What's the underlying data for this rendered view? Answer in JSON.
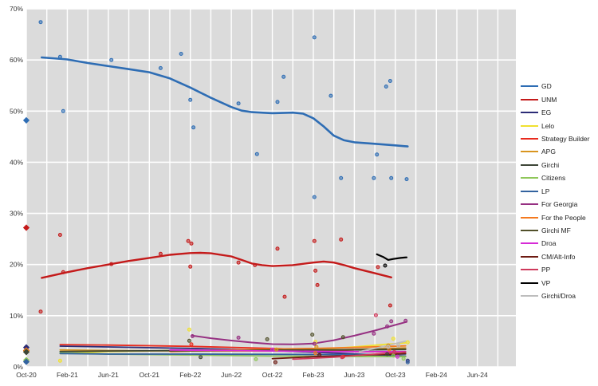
{
  "chart_data": {
    "type": "scatter",
    "description": "Opinion polling scatter with trend lines; x = months since Oct-2020, y = percent",
    "x_axis": {
      "tick_labels": [
        "Oct-20",
        "Feb-21",
        "Jun-21",
        "Oct-21",
        "Feb-22",
        "Jun-22",
        "Oct-22",
        "Feb-23",
        "Jun-23",
        "Oct-23",
        "Feb-24",
        "Jun-24"
      ],
      "tick_month_step": 4,
      "minor_grid_month_step": 2,
      "months_span": 46
    },
    "y_axis": {
      "tick_labels": [
        "0%",
        "10%",
        "20%",
        "30%",
        "40%",
        "50%",
        "60%",
        "70%"
      ],
      "min": 0,
      "max": 70
    },
    "plot_background": "#dbdbdb",
    "gridline_color": "#ffffff",
    "series": [
      {
        "name": "GD",
        "color": "#2e6db4",
        "line_width": 2.6,
        "result": 48.2,
        "trend": [
          [
            1.5,
            60.5
          ],
          [
            4,
            60.1
          ],
          [
            6,
            59.4
          ],
          [
            8,
            58.8
          ],
          [
            10,
            58.2
          ],
          [
            12,
            57.6
          ],
          [
            14,
            56.4
          ],
          [
            16,
            54.6
          ],
          [
            18,
            52.6
          ],
          [
            20,
            50.8
          ],
          [
            21,
            50.1
          ],
          [
            22,
            49.8
          ],
          [
            24,
            49.6
          ],
          [
            26,
            49.7
          ],
          [
            27,
            49.5
          ],
          [
            28,
            48.6
          ],
          [
            29,
            47.0
          ],
          [
            30,
            45.2
          ],
          [
            31,
            44.3
          ],
          [
            32,
            43.9
          ],
          [
            34,
            43.6
          ],
          [
            36,
            43.3
          ],
          [
            37.2,
            43.1
          ]
        ],
        "points": [
          [
            1.4,
            67.4
          ],
          [
            3.3,
            60.6
          ],
          [
            3.6,
            50.0
          ],
          [
            8.3,
            60.0
          ],
          [
            13.1,
            58.4
          ],
          [
            15.1,
            61.2
          ],
          [
            16.0,
            52.2
          ],
          [
            16.3,
            46.8
          ],
          [
            20.7,
            51.5
          ],
          [
            22.5,
            41.6
          ],
          [
            24.5,
            51.8
          ],
          [
            25.1,
            56.7
          ],
          [
            28.1,
            64.4
          ],
          [
            28.1,
            33.2
          ],
          [
            29.7,
            53.0
          ],
          [
            30.7,
            36.9
          ],
          [
            34.2,
            41.5
          ],
          [
            33.9,
            36.9
          ],
          [
            35.1,
            54.8
          ],
          [
            35.5,
            55.9
          ],
          [
            35.6,
            36.9
          ],
          [
            37.1,
            36.7
          ]
        ]
      },
      {
        "name": "UNM",
        "color": "#c41a1a",
        "line_width": 2.4,
        "result": 27.2,
        "trend": [
          [
            1.5,
            17.4
          ],
          [
            4,
            18.5
          ],
          [
            6,
            19.3
          ],
          [
            8,
            20.0
          ],
          [
            10,
            20.7
          ],
          [
            12,
            21.3
          ],
          [
            14,
            21.9
          ],
          [
            16,
            22.25
          ],
          [
            17,
            22.3
          ],
          [
            18,
            22.2
          ],
          [
            20,
            21.6
          ],
          [
            21,
            20.9
          ],
          [
            22,
            20.2
          ],
          [
            23,
            19.9
          ],
          [
            24,
            19.7
          ],
          [
            26,
            19.9
          ],
          [
            28,
            20.4
          ],
          [
            29,
            20.6
          ],
          [
            30,
            20.4
          ],
          [
            31,
            19.9
          ],
          [
            32,
            19.3
          ],
          [
            34,
            18.3
          ],
          [
            35.6,
            17.5
          ]
        ],
        "points": [
          [
            1.4,
            10.8
          ],
          [
            3.3,
            25.8
          ],
          [
            3.6,
            18.5
          ],
          [
            8.3,
            20.1
          ],
          [
            13.1,
            22.1
          ],
          [
            15.8,
            24.6
          ],
          [
            16.1,
            24.1
          ],
          [
            16.0,
            19.6
          ],
          [
            20.7,
            20.4
          ],
          [
            22.3,
            19.9
          ],
          [
            24.5,
            23.1
          ],
          [
            25.2,
            13.7
          ],
          [
            28.1,
            24.6
          ],
          [
            28.2,
            18.8
          ],
          [
            28.4,
            16.0
          ],
          [
            30.7,
            24.9
          ],
          [
            34.3,
            19.5
          ],
          [
            35.5,
            12.0
          ]
        ]
      },
      {
        "name": "EG",
        "color": "#2c2c77",
        "line_width": 1.8,
        "result": 3.8,
        "trend": [
          [
            3.3,
            4.05
          ],
          [
            8,
            3.9
          ],
          [
            16,
            3.6
          ],
          [
            24,
            3.2
          ],
          [
            30,
            2.7
          ],
          [
            37,
            2.1
          ]
        ],
        "points": [
          [
            37.2,
            1.2
          ]
        ]
      },
      {
        "name": "Lelo",
        "color": "#f0e130",
        "line_width": 1.8,
        "result": 3.2,
        "trend": [
          [
            3.3,
            2.6
          ],
          [
            8,
            3.0
          ],
          [
            16,
            3.25
          ],
          [
            24,
            3.3
          ],
          [
            28,
            3.4
          ],
          [
            32,
            3.9
          ],
          [
            35,
            4.4
          ],
          [
            37,
            4.7
          ]
        ],
        "points": [
          [
            3.3,
            1.2
          ],
          [
            15.9,
            7.3
          ],
          [
            28.2,
            4.9
          ],
          [
            35.8,
            5.5
          ],
          [
            37.2,
            4.8
          ]
        ]
      },
      {
        "name": "Strategy Builder",
        "color": "#e82b1e",
        "line_width": 1.8,
        "result": 3.2,
        "trend": [
          [
            3.3,
            4.35
          ],
          [
            8,
            4.25
          ],
          [
            16,
            4.0
          ],
          [
            24,
            3.6
          ],
          [
            28,
            3.3
          ],
          [
            32,
            3.0
          ],
          [
            37,
            2.9
          ]
        ],
        "points": [
          [
            16.1,
            4.4
          ],
          [
            30.9,
            2.0
          ]
        ]
      },
      {
        "name": "APG",
        "color": "#d9951f",
        "line_width": 1.8,
        "result": 3.1,
        "trend": [
          [
            3.3,
            3.3
          ],
          [
            8,
            3.2
          ],
          [
            16,
            3.1
          ],
          [
            24,
            3.1
          ],
          [
            30,
            3.3
          ],
          [
            37,
            3.7
          ]
        ],
        "points": [
          [
            24.4,
            3.4
          ],
          [
            28.3,
            3.9
          ],
          [
            35.3,
            4.2
          ]
        ]
      },
      {
        "name": "Girchi",
        "color": "#3d4637",
        "line_width": 1.8,
        "result": 2.9,
        "trend": [
          [
            3.3,
            3.0
          ],
          [
            8,
            3.1
          ],
          [
            16,
            3.2
          ],
          [
            24,
            3.25
          ],
          [
            30,
            3.3
          ],
          [
            37,
            3.4
          ]
        ],
        "points": [
          [
            17,
            1.9
          ],
          [
            35.2,
            2.5
          ]
        ]
      },
      {
        "name": "Citizens",
        "color": "#8fc75a",
        "line_width": 1.8,
        "result": 1.3,
        "trend": [
          [
            3.3,
            2.75
          ],
          [
            8,
            2.5
          ],
          [
            16,
            2.3
          ],
          [
            24,
            2.1
          ],
          [
            30,
            2.05
          ],
          [
            37,
            2.0
          ]
        ],
        "points": [
          [
            22.4,
            1.5
          ],
          [
            35.8,
            2.2
          ],
          [
            36.8,
            1.6
          ]
        ]
      },
      {
        "name": "LP",
        "color": "#33639f",
        "line_width": 1.8,
        "result": 1.0,
        "trend": [
          [
            3.3,
            2.6
          ],
          [
            8,
            2.5
          ],
          [
            16,
            2.5
          ],
          [
            24,
            2.45
          ],
          [
            30,
            2.4
          ],
          [
            37,
            2.5
          ]
        ],
        "points": [
          [
            37.2,
            0.9
          ]
        ]
      },
      {
        "name": "For Georgia",
        "color": "#963082",
        "line_width": 2.0,
        "trend": [
          [
            16.2,
            6.1
          ],
          [
            18,
            5.6
          ],
          [
            20,
            5.15
          ],
          [
            22,
            4.75
          ],
          [
            24,
            4.45
          ],
          [
            26,
            4.4
          ],
          [
            28,
            4.55
          ],
          [
            30,
            5.2
          ],
          [
            32,
            6.1
          ],
          [
            34,
            7.1
          ],
          [
            36,
            8.2
          ],
          [
            37.1,
            8.8
          ]
        ],
        "points": [
          [
            16.2,
            6.0
          ],
          [
            20.7,
            5.7
          ],
          [
            28.1,
            4.5
          ],
          [
            33.9,
            6.5
          ],
          [
            35.2,
            7.9
          ],
          [
            35.6,
            8.9
          ],
          [
            37,
            9.0
          ]
        ]
      },
      {
        "name": "For the People",
        "color": "#f4791f",
        "line_width": 1.8,
        "trend": [
          [
            14,
            3.0
          ],
          [
            20,
            3.3
          ],
          [
            24,
            3.5
          ],
          [
            28,
            3.6
          ],
          [
            32,
            3.8
          ],
          [
            37,
            4.1
          ]
        ],
        "points": [
          [
            28.2,
            2.7
          ],
          [
            35.4,
            3.4
          ]
        ]
      },
      {
        "name": "Girchi MF",
        "color": "#51502a",
        "line_width": 1.8,
        "trend": [
          [
            14,
            3.1
          ],
          [
            20,
            3.2
          ],
          [
            24,
            3.3
          ],
          [
            30,
            3.35
          ],
          [
            37,
            3.5
          ]
        ],
        "points": [
          [
            15.9,
            5.1
          ],
          [
            23.5,
            5.4
          ],
          [
            27.9,
            6.3
          ],
          [
            30.9,
            5.8
          ]
        ]
      },
      {
        "name": "Droa",
        "color": "#d62bd6",
        "line_width": 1.8,
        "trend": [
          [
            14,
            3.3
          ],
          [
            20,
            3.2
          ],
          [
            24,
            3.1
          ],
          [
            30,
            3.0
          ],
          [
            37,
            3.0
          ]
        ],
        "points": [
          [
            24,
            3.4
          ],
          [
            36.2,
            2.0
          ]
        ]
      },
      {
        "name": "CM/Alt-Info",
        "color": "#6e1b12",
        "line_width": 1.8,
        "trend": [
          [
            24,
            1.6
          ],
          [
            26,
            1.8
          ],
          [
            28,
            2.0
          ],
          [
            30,
            2.1
          ],
          [
            32,
            2.25
          ],
          [
            34,
            2.35
          ],
          [
            36,
            2.5
          ],
          [
            37,
            2.6
          ]
        ],
        "points": [
          [
            24.3,
            0.9
          ],
          [
            28.6,
            2.3
          ]
        ]
      },
      {
        "name": "PP",
        "color": "#cf3a5c",
        "line_width": 1.8,
        "trend": [
          [
            26,
            1.5
          ],
          [
            28,
            1.7
          ],
          [
            30,
            1.9
          ],
          [
            32,
            2.2
          ],
          [
            34,
            2.5
          ],
          [
            37,
            2.9
          ]
        ],
        "points": [
          [
            30.8,
            1.9
          ],
          [
            34.1,
            10.1
          ],
          [
            35.9,
            2.9
          ]
        ]
      },
      {
        "name": "VP",
        "color": "#000000",
        "line_width": 2.2,
        "trend": [
          [
            34.2,
            22.0
          ],
          [
            34.8,
            21.5
          ],
          [
            35.3,
            20.9
          ],
          [
            35.8,
            21.1
          ],
          [
            36.5,
            21.3
          ],
          [
            37.1,
            21.4
          ]
        ],
        "points": [
          [
            35.0,
            19.8
          ]
        ]
      },
      {
        "name": "Girchi/Droa",
        "color": "#bdbdbd",
        "line_width": 1.8,
        "trend": [
          [
            32.5,
            3.0
          ],
          [
            34,
            3.6
          ],
          [
            35.5,
            4.3
          ],
          [
            36.5,
            4.8
          ],
          [
            37,
            5.0
          ]
        ],
        "points": [
          [
            35.3,
            3.9
          ],
          [
            36.3,
            4.2
          ]
        ]
      }
    ],
    "legend_position": "right"
  }
}
